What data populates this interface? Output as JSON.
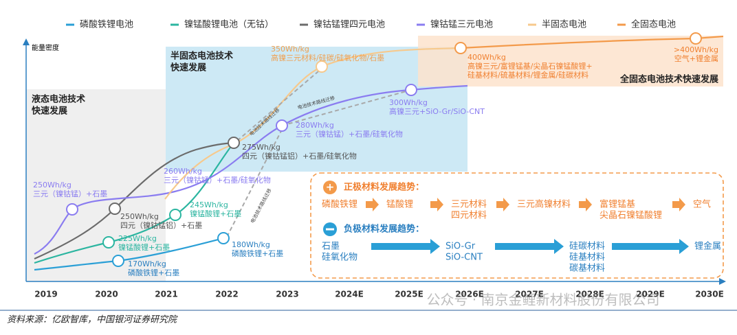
{
  "legend": [
    "磷酸铁锂电池",
    "镍锰酸锂电池（无钴）",
    "镍钴锰锂四元电池",
    "镍钴锰三元电池",
    "半固态电池",
    "全固态电池"
  ],
  "y_axis_label": "能量密度",
  "x_labels": [
    "2019",
    "2020",
    "2021",
    "2022",
    "2023",
    "2024E",
    "2025E",
    "2026E",
    "2027E",
    "2028E",
    "2029E",
    "2030E"
  ],
  "regions": [
    [
      "液态电池技术",
      "快速发展"
    ],
    [
      "半固态电池技术",
      "快速发展"
    ],
    [
      "全固态电池技术快速发展"
    ]
  ],
  "migration_labels": [
    "电池技术路线迁移",
    "电池技术路线迁移",
    "电池技术路线迁移"
  ],
  "points": [
    [
      "250Wh/kg",
      "三元（镍钴锰）+石墨"
    ],
    [
      "250Wh/kg",
      "四元（镍钴锰铝）+石墨"
    ],
    [
      "225Wh/kg",
      "镍锰酸锂+石墨"
    ],
    [
      "170Wh/kg",
      "磷酸铁锂+石墨"
    ],
    [
      "260Wh/kg",
      "三元（镍钴锰）+石墨/硅氧化物"
    ],
    [
      "245Wh/kg",
      "镍锰酸锂+石墨"
    ],
    [
      "275Wh/kg",
      "四元（镍钴锰铝）+石墨/硅氧化物"
    ],
    [
      "180Wh/kg",
      "磷酸铁锂+石墨"
    ],
    [
      "280Wh/kg",
      "三元（镍钴锰）+石墨/硅氧化物"
    ],
    [
      "350Wh/kg",
      "高镍三元材料/硅碳/硅氧化物/石墨"
    ],
    [
      "300Wh/kg",
      "高镍三元+SiO-Gr/SiO-CNT"
    ],
    [
      "400Wh/kg",
      "高镍三元/富锂锰基/尖晶石镍锰酸锂+",
      "硅基材料/硫基材料/锂金属/硅碳材料"
    ],
    [
      ">400Wh/kg",
      "空气+锂金属"
    ]
  ],
  "trend_box": {
    "cathode": {
      "title": "正极材料发展趋势：",
      "items": [
        [
          "磷酸铁锂"
        ],
        [
          "锰酸锂"
        ],
        [
          "三元材料",
          "四元材料"
        ],
        [
          "三元高镍材料"
        ],
        [
          "富锂锰基",
          "尖晶石镍锰酸锂"
        ],
        [
          "空气"
        ]
      ]
    },
    "anode": {
      "title": "负极材料发展趋势：",
      "items": [
        [
          "石墨",
          "硅氧化物"
        ],
        [
          "SiO-Gr",
          "SiO-CNT"
        ],
        [
          "硅碳材料",
          "硅基材料",
          "碳基材料"
        ],
        [
          "锂金属"
        ]
      ]
    }
  },
  "watermark": "公众号 · 南京金鲤新材料股份有限公司",
  "source": "资料来源：亿欧智库，中国银河证券研究院"
}
